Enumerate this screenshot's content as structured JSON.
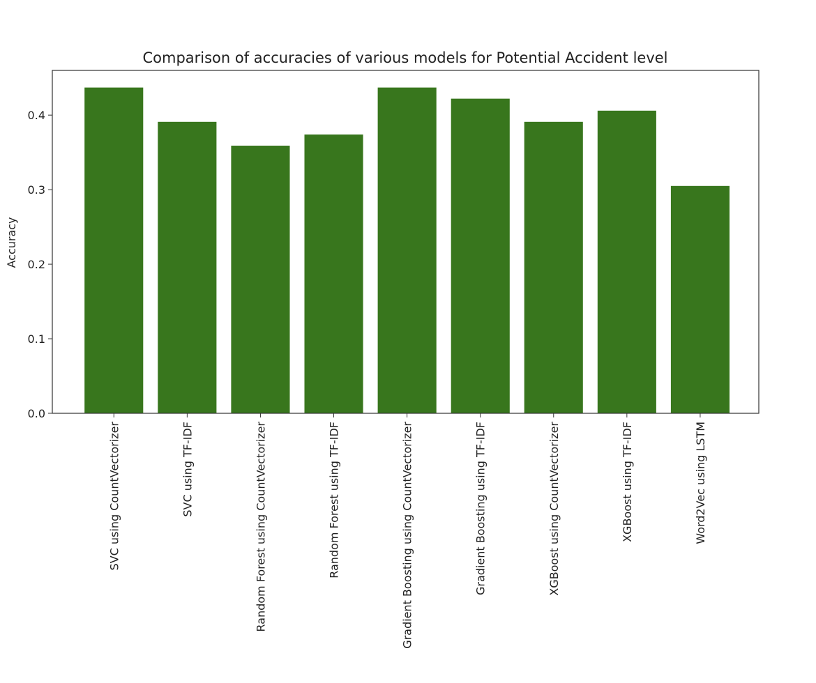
{
  "chart_data": {
    "type": "bar",
    "title": "Comparison of accuracies of various models for Potential Accident level",
    "xlabel": "",
    "ylabel": "Accuracy",
    "categories": [
      "SVC using CountVectorizer",
      "SVC using TF-IDF",
      "Random Forest using CountVectorizer",
      "Random Forest using TF-IDF",
      "Gradient Boosting using CountVectorizer",
      "Gradient Boosting using TF-IDF",
      "XGBoost using CountVectorizer",
      "XGBoost using TF-IDF",
      "Word2Vec using LSTM"
    ],
    "values": [
      0.437,
      0.391,
      0.359,
      0.374,
      0.437,
      0.422,
      0.391,
      0.406,
      0.305
    ],
    "ylim": [
      0,
      0.46
    ],
    "yticks": [
      0.0,
      0.1,
      0.2,
      0.3,
      0.4
    ],
    "ytick_labels": [
      "0.0",
      "0.1",
      "0.2",
      "0.3",
      "0.4"
    ],
    "bar_color": "#38761d",
    "grid": false,
    "legend": "none"
  }
}
